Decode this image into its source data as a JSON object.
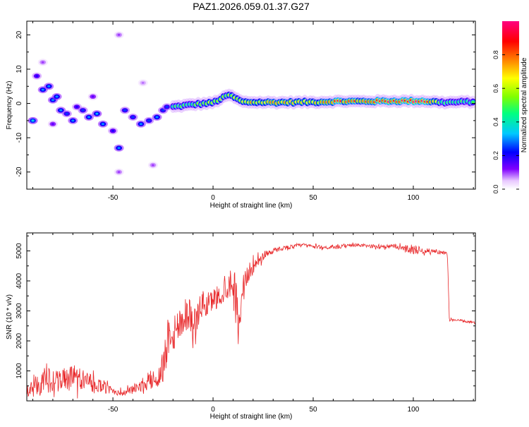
{
  "title": "PAZ1.2026.059.01.37.G27",
  "chart_data": [
    {
      "type": "heatmap",
      "xlabel": "Height of straight line (km)",
      "ylabel": "Frequency (Hz)",
      "xlim": [
        -93,
        131
      ],
      "ylim": [
        -25,
        24
      ],
      "xticks": [
        -50,
        0,
        50,
        100
      ],
      "yticks": [
        -20,
        -10,
        0,
        10,
        20
      ],
      "colorbar": {
        "label": "Normalized spectral amplitude",
        "range": [
          0,
          1
        ],
        "ticks": [
          "0.0",
          "0.2",
          "0.4",
          "0.6",
          "0.8"
        ],
        "colormap": [
          "#ffffff",
          "#8000ff",
          "#0000ff",
          "#00c8ff",
          "#00ff80",
          "#80ff00",
          "#ffff00",
          "#ff8000",
          "#ff0000",
          "#ff0080"
        ]
      },
      "ridge": [
        {
          "x": -20,
          "y": -1.0,
          "a": 0.45
        },
        {
          "x": -10,
          "y": -0.3,
          "a": 0.5
        },
        {
          "x": 0,
          "y": 0.2,
          "a": 0.62
        },
        {
          "x": 8,
          "y": 2.5,
          "a": 0.55
        },
        {
          "x": 15,
          "y": 0.4,
          "a": 0.7
        },
        {
          "x": 30,
          "y": 0.3,
          "a": 0.75
        },
        {
          "x": 50,
          "y": 0.4,
          "a": 0.65
        },
        {
          "x": 62,
          "y": 0.6,
          "a": 0.85
        },
        {
          "x": 75,
          "y": 0.6,
          "a": 0.8
        },
        {
          "x": 90,
          "y": 0.7,
          "a": 0.95
        },
        {
          "x": 105,
          "y": 0.7,
          "a": 0.95
        },
        {
          "x": 115,
          "y": 0.3,
          "a": 0.5
        },
        {
          "x": 131,
          "y": 0.5,
          "a": 0.45
        }
      ],
      "blobs": [
        {
          "x": -90,
          "y": -5,
          "a": 0.35
        },
        {
          "x": -88,
          "y": 8,
          "a": 0.2
        },
        {
          "x": -85,
          "y": 4,
          "a": 0.3
        },
        {
          "x": -82,
          "y": 5,
          "a": 0.3
        },
        {
          "x": -80,
          "y": 1,
          "a": 0.3
        },
        {
          "x": -78,
          "y": 2,
          "a": 0.3
        },
        {
          "x": -76,
          "y": -2,
          "a": 0.3
        },
        {
          "x": -73,
          "y": -3,
          "a": 0.25
        },
        {
          "x": -70,
          "y": -5,
          "a": 0.3
        },
        {
          "x": -68,
          "y": -1,
          "a": 0.2
        },
        {
          "x": -65,
          "y": -2,
          "a": 0.25
        },
        {
          "x": -62,
          "y": -4,
          "a": 0.3
        },
        {
          "x": -58,
          "y": -3,
          "a": 0.32
        },
        {
          "x": -55,
          "y": -6,
          "a": 0.3
        },
        {
          "x": -50,
          "y": -8,
          "a": 0.2
        },
        {
          "x": -47,
          "y": -13,
          "a": 0.3
        },
        {
          "x": -44,
          "y": -2,
          "a": 0.25
        },
        {
          "x": -40,
          "y": -4,
          "a": 0.25
        },
        {
          "x": -36,
          "y": -6,
          "a": 0.3
        },
        {
          "x": -32,
          "y": -5,
          "a": 0.25
        },
        {
          "x": -28,
          "y": -4,
          "a": 0.3
        },
        {
          "x": -25,
          "y": -2,
          "a": 0.25
        },
        {
          "x": -23,
          "y": -1,
          "a": 0.25
        },
        {
          "x": -60,
          "y": 2,
          "a": 0.15
        },
        {
          "x": -80,
          "y": -6,
          "a": 0.15
        },
        {
          "x": -47,
          "y": 20,
          "a": 0.1
        },
        {
          "x": -47,
          "y": -20,
          "a": 0.1
        },
        {
          "x": -30,
          "y": -18,
          "a": 0.1
        },
        {
          "x": -85,
          "y": 12,
          "a": 0.1
        },
        {
          "x": -35,
          "y": 6,
          "a": 0.08
        }
      ]
    },
    {
      "type": "line",
      "xlabel": "Height of straight line (km)",
      "ylabel": "SNR (10 * v/v)",
      "xlim": [
        -93,
        131
      ],
      "ylim": [
        0,
        5600
      ],
      "xticks": [
        -50,
        0,
        50,
        100
      ],
      "yticks": [
        1000,
        2000,
        3000,
        4000,
        5000
      ],
      "color": "#e8282a",
      "series": [
        {
          "x": [
            -93,
            -88,
            -83,
            -78,
            -73,
            -68,
            -63,
            -58,
            -53,
            -48,
            -45,
            -40,
            -35,
            -30,
            -27,
            -25,
            -23,
            -22,
            -20,
            -18,
            -15,
            -12,
            -10,
            -8,
            -5,
            -3,
            0,
            3,
            6,
            9,
            11,
            13,
            15,
            18,
            22,
            26,
            30,
            35,
            40,
            45,
            50,
            60,
            70,
            80,
            90,
            95,
            100,
            105,
            110,
            114,
            116,
            117,
            118,
            122,
            126,
            131
          ],
          "y": [
            350,
            500,
            700,
            650,
            750,
            700,
            650,
            550,
            400,
            300,
            250,
            400,
            500,
            700,
            800,
            1200,
            1800,
            2500,
            2300,
            2400,
            2800,
            3000,
            2500,
            2800,
            3300,
            3100,
            3400,
            3500,
            3700,
            4000,
            3800,
            2500,
            3900,
            4300,
            4600,
            4900,
            5000,
            5100,
            5150,
            5200,
            5150,
            5100,
            5200,
            5150,
            5150,
            5100,
            5050,
            5000,
            5000,
            4950,
            4900,
            4900,
            2700,
            2700,
            2650,
            2600
          ],
          "noise": [
            350,
            500,
            700,
            650,
            700,
            650,
            500,
            400,
            300,
            200,
            150,
            250,
            300,
            500,
            600,
            1000,
            1200,
            1500,
            1200,
            1100,
            1000,
            1000,
            900,
            800,
            700,
            700,
            600,
            700,
            700,
            800,
            1000,
            800,
            600,
            500,
            300,
            250,
            150,
            120,
            100,
            100,
            100,
            100,
            100,
            100,
            120,
            150,
            300,
            150,
            120,
            120,
            120,
            100,
            70,
            60,
            60,
            60
          ]
        }
      ]
    }
  ]
}
